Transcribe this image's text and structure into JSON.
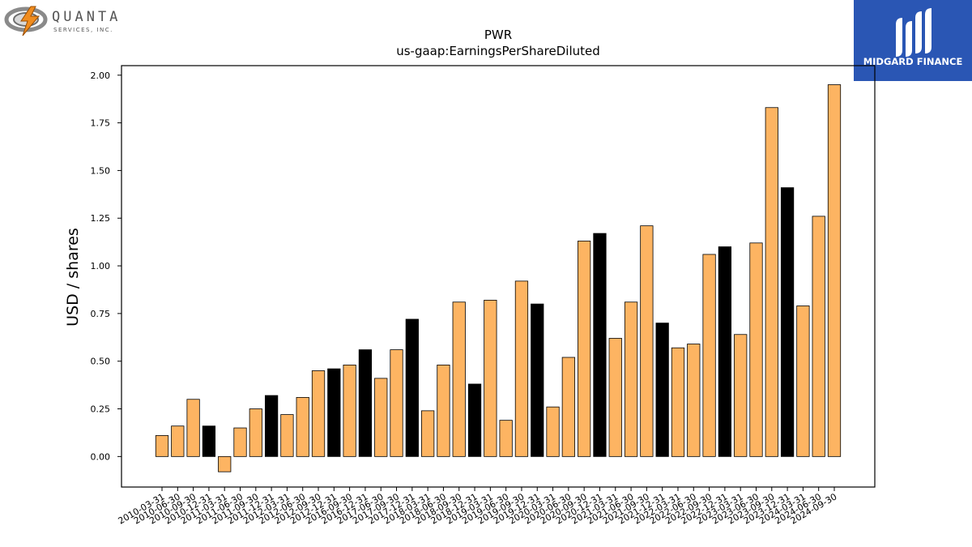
{
  "branding": {
    "left_logo": {
      "name": "QUANTA",
      "sub": "SERVICES, INC."
    },
    "right_logo": {
      "name": "MIDGARD FINANCE",
      "bg_color": "#2a56b4"
    }
  },
  "chart_data": {
    "type": "bar",
    "title": "PWR",
    "subtitle": "us-gaap:EarningsPerShareDiluted",
    "ylabel": "USD / shares",
    "xlabel": "",
    "ylim": [
      -0.16,
      2.05
    ],
    "yticks": [
      "0.00",
      "0.25",
      "0.50",
      "0.75",
      "1.00",
      "1.25",
      "1.50",
      "1.75",
      "2.00"
    ],
    "grid": false,
    "colors": {
      "quarter": "#fdb462",
      "year_end": "#000000",
      "edge": "#000000"
    },
    "categories": [
      "2010-03-31",
      "2010-06-30",
      "2010-09-30",
      "2010-12-31",
      "2011-03-31",
      "2011-06-30",
      "2011-09-30",
      "2011-12-31",
      "2012-03-31",
      "2012-06-30",
      "2012-09-30",
      "2012-12-31",
      "2016-09-30",
      "2016-12-31",
      "2017-06-30",
      "2017-09-30",
      "2017-12-31",
      "2018-03-31",
      "2018-06-30",
      "2018-09-30",
      "2018-12-31",
      "2019-03-31",
      "2019-06-30",
      "2019-09-30",
      "2019-12-31",
      "2020-03-31",
      "2020-06-30",
      "2020-09-30",
      "2020-12-31",
      "2021-03-31",
      "2021-06-30",
      "2021-09-30",
      "2021-12-31",
      "2022-03-31",
      "2022-06-30",
      "2022-09-30",
      "2022-12-31",
      "2023-03-31",
      "2023-06-30",
      "2023-09-30",
      "2023-12-31",
      "2024-03-31",
      "2024-06-30",
      "2024-09-30"
    ],
    "values": [
      0.11,
      0.16,
      0.3,
      0.16,
      -0.08,
      0.15,
      0.25,
      0.32,
      0.22,
      0.31,
      0.45,
      0.46,
      0.48,
      0.56,
      0.41,
      0.56,
      0.72,
      0.24,
      0.48,
      0.81,
      0.38,
      0.82,
      0.19,
      0.92,
      0.8,
      0.26,
      0.52,
      1.13,
      1.17,
      0.62,
      0.81,
      1.21,
      0.7,
      0.57,
      0.59,
      1.06,
      1.1,
      0.64,
      1.12,
      1.83,
      1.41,
      0.79,
      1.26,
      1.95
    ],
    "year_end": [
      false,
      false,
      false,
      true,
      false,
      false,
      false,
      true,
      false,
      false,
      false,
      true,
      false,
      true,
      false,
      false,
      true,
      false,
      false,
      false,
      true,
      false,
      false,
      false,
      true,
      false,
      false,
      false,
      true,
      false,
      false,
      false,
      true,
      false,
      false,
      false,
      true,
      false,
      false,
      false,
      true,
      false,
      false,
      false
    ]
  }
}
